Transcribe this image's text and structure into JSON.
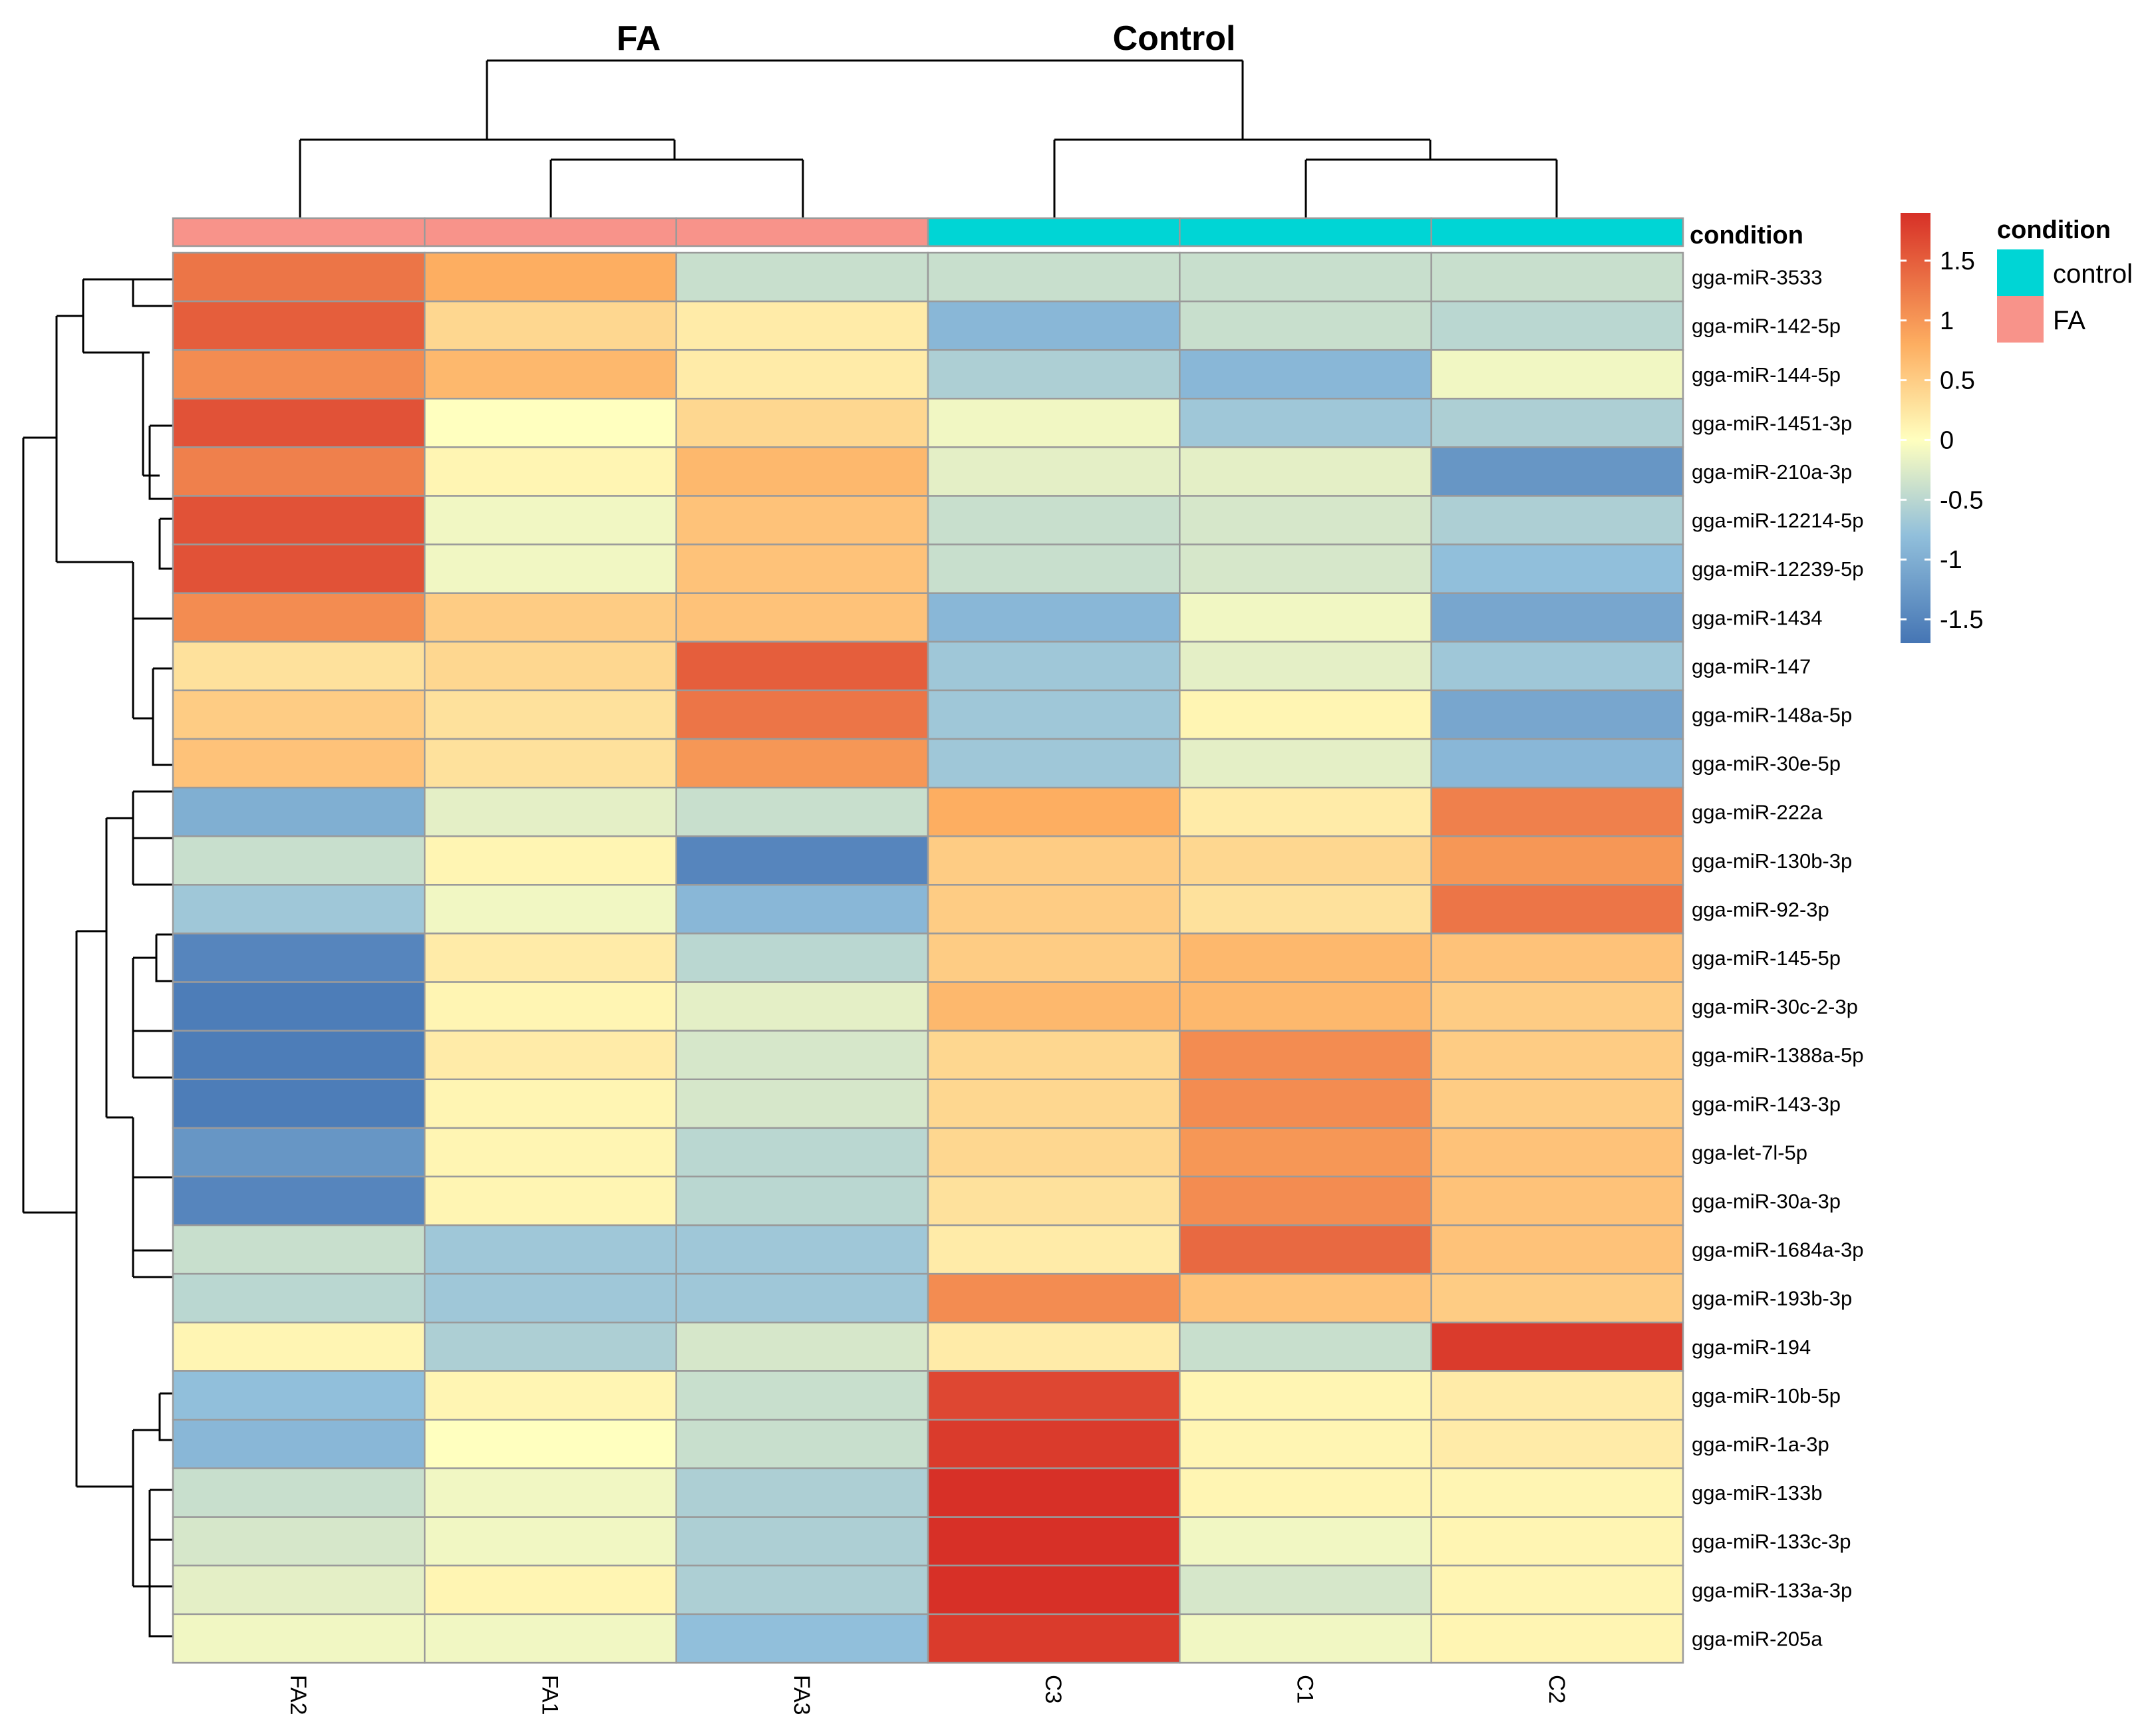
{
  "chart_data": {
    "type": "heatmap",
    "title": "",
    "group_labels": [
      "FA",
      "Control"
    ],
    "columns": [
      "FA2",
      "FA1",
      "FA3",
      "C3",
      "C1",
      "C2"
    ],
    "column_groups": [
      "FA",
      "FA",
      "FA",
      "control",
      "control",
      "control"
    ],
    "rows": [
      "gga-miR-3533",
      "gga-miR-142-5p",
      "gga-miR-144-5p",
      "gga-miR-1451-3p",
      "gga-miR-210a-3p",
      "gga-miR-12214-5p",
      "gga-miR-12239-5p",
      "gga-miR-1434",
      "gga-miR-147",
      "gga-miR-148a-5p",
      "gga-miR-30e-5p",
      "gga-miR-222a",
      "gga-miR-130b-3p",
      "gga-miR-92-3p",
      "gga-miR-145-5p",
      "gga-miR-30c-2-3p",
      "gga-miR-1388a-5p",
      "gga-miR-143-3p",
      "gga-let-7l-5p",
      "gga-miR-30a-3p",
      "gga-miR-1684a-3p",
      "gga-miR-193b-3p",
      "gga-miR-194",
      "gga-miR-10b-5p",
      "gga-miR-1a-3p",
      "gga-miR-133b",
      "gga-miR-133c-3p",
      "gga-miR-133a-3p",
      "gga-miR-205a"
    ],
    "values": [
      [
        1.3,
        0.8,
        -0.4,
        -0.4,
        -0.4,
        -0.4
      ],
      [
        1.5,
        0.4,
        0.2,
        -0.9,
        -0.4,
        -0.5
      ],
      [
        1.1,
        0.7,
        0.2,
        -0.6,
        -0.9,
        -0.1
      ],
      [
        1.6,
        0.0,
        0.4,
        -0.1,
        -0.7,
        -0.6
      ],
      [
        1.2,
        0.1,
        0.7,
        -0.2,
        -0.2,
        -1.3
      ],
      [
        1.6,
        -0.1,
        0.6,
        -0.4,
        -0.3,
        -0.6
      ],
      [
        1.6,
        -0.1,
        0.6,
        -0.4,
        -0.3,
        -0.8
      ],
      [
        1.1,
        0.5,
        0.6,
        -0.9,
        -0.1,
        -1.1
      ],
      [
        0.3,
        0.4,
        1.5,
        -0.7,
        -0.2,
        -0.7
      ],
      [
        0.5,
        0.3,
        1.3,
        -0.7,
        0.1,
        -1.1
      ],
      [
        0.6,
        0.3,
        1.0,
        -0.7,
        -0.2,
        -0.9
      ],
      [
        -1.0,
        -0.2,
        -0.4,
        0.8,
        0.2,
        1.2
      ],
      [
        -0.4,
        0.1,
        -1.5,
        0.5,
        0.4,
        1.0
      ],
      [
        -0.7,
        -0.1,
        -0.9,
        0.5,
        0.3,
        1.3
      ],
      [
        -1.5,
        0.2,
        -0.5,
        0.5,
        0.7,
        0.6
      ],
      [
        -1.6,
        0.1,
        -0.2,
        0.7,
        0.7,
        0.5
      ],
      [
        -1.6,
        0.2,
        -0.3,
        0.4,
        1.1,
        0.5
      ],
      [
        -1.6,
        0.1,
        -0.3,
        0.4,
        1.1,
        0.5
      ],
      [
        -1.3,
        0.1,
        -0.5,
        0.4,
        1.0,
        0.6
      ],
      [
        -1.5,
        0.1,
        -0.5,
        0.3,
        1.1,
        0.6
      ],
      [
        -0.4,
        -0.7,
        -0.7,
        0.2,
        1.4,
        0.6
      ],
      [
        -0.5,
        -0.7,
        -0.7,
        1.1,
        0.6,
        0.5
      ],
      [
        0.1,
        -0.6,
        -0.3,
        0.2,
        -0.4,
        1.8
      ],
      [
        -0.8,
        0.1,
        -0.4,
        1.7,
        0.1,
        0.2
      ],
      [
        -0.9,
        0.0,
        -0.4,
        1.8,
        0.1,
        0.2
      ],
      [
        -0.4,
        -0.1,
        -0.6,
        1.9,
        0.1,
        0.1
      ],
      [
        -0.3,
        -0.1,
        -0.6,
        1.9,
        -0.1,
        0.1
      ],
      [
        -0.2,
        0.1,
        -0.6,
        1.9,
        -0.3,
        0.1
      ],
      [
        -0.1,
        -0.1,
        -0.8,
        1.8,
        -0.1,
        0.1
      ]
    ],
    "color_scale": {
      "min": -1.7,
      "max": 1.9,
      "stops": [
        {
          "v": -1.7,
          "c": "#4575b4"
        },
        {
          "v": -0.8,
          "c": "#91bfdb"
        },
        {
          "v": 0.0,
          "c": "#ffffbf"
        },
        {
          "v": 0.8,
          "c": "#fdae61"
        },
        {
          "v": 1.9,
          "c": "#d73027"
        }
      ],
      "ticks": [
        1.5,
        1,
        0.5,
        0,
        -0.5,
        -1,
        -1.5
      ],
      "tick_labels": [
        "1.5",
        "1",
        "0.5",
        "0",
        "-0.5",
        "-1",
        "-1.5"
      ]
    },
    "annotation": {
      "label": "condition",
      "legend_title": "condition",
      "levels": [
        {
          "name": "control",
          "color": "#00d5d5"
        },
        {
          "name": "FA",
          "color": "#f8938a"
        }
      ]
    },
    "col_dendrogram_order": [
      [
        "FA2",
        [
          "FA1",
          "FA3"
        ]
      ],
      [
        "C3",
        [
          "C1",
          "C2"
        ]
      ]
    ],
    "row_clusters": "hierarchical"
  }
}
